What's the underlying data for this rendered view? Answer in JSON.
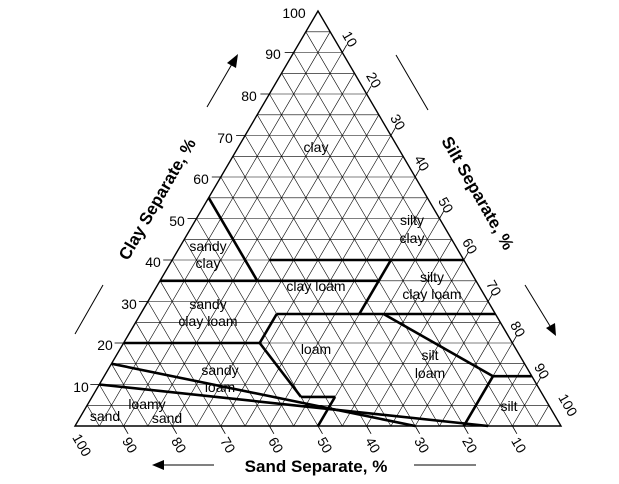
{
  "axes": {
    "clay": {
      "title": "Clay Separate, %",
      "ticks": [
        "100",
        "90",
        "80",
        "70",
        "60",
        "50",
        "40",
        "30",
        "20",
        "10"
      ]
    },
    "silt": {
      "title": "Silt Separate, %",
      "ticks": [
        "10",
        "20",
        "30",
        "40",
        "50",
        "60",
        "70",
        "80",
        "90",
        "100"
      ]
    },
    "sand": {
      "title": "Sand Separate, %",
      "ticks": [
        "100",
        "90",
        "80",
        "70",
        "60",
        "50",
        "40",
        "30",
        "20",
        "10"
      ]
    }
  },
  "zones": {
    "clay": "clay",
    "silty_clay_1": "silty",
    "silty_clay_2": "clay",
    "sandy_clay_1": "sandy",
    "sandy_clay_2": "clay",
    "clay_loam": "clay loam",
    "silty_clay_loam_1": "silty",
    "silty_clay_loam_2": "clay loam",
    "sandy_clay_loam_1": "sandy",
    "sandy_clay_loam_2": "clay loam",
    "loam": "loam",
    "silt_loam_1": "silt",
    "silt_loam_2": "loam",
    "sandy_loam_1": "sandy",
    "sandy_loam_2": "loam",
    "loamy_sand_1": "loamy",
    "loamy_sand_2": "sand",
    "sand": "sand",
    "silt": "silt"
  },
  "grid_step_percent": 5,
  "colors": {
    "lines": "#000000",
    "background": "#ffffff"
  }
}
